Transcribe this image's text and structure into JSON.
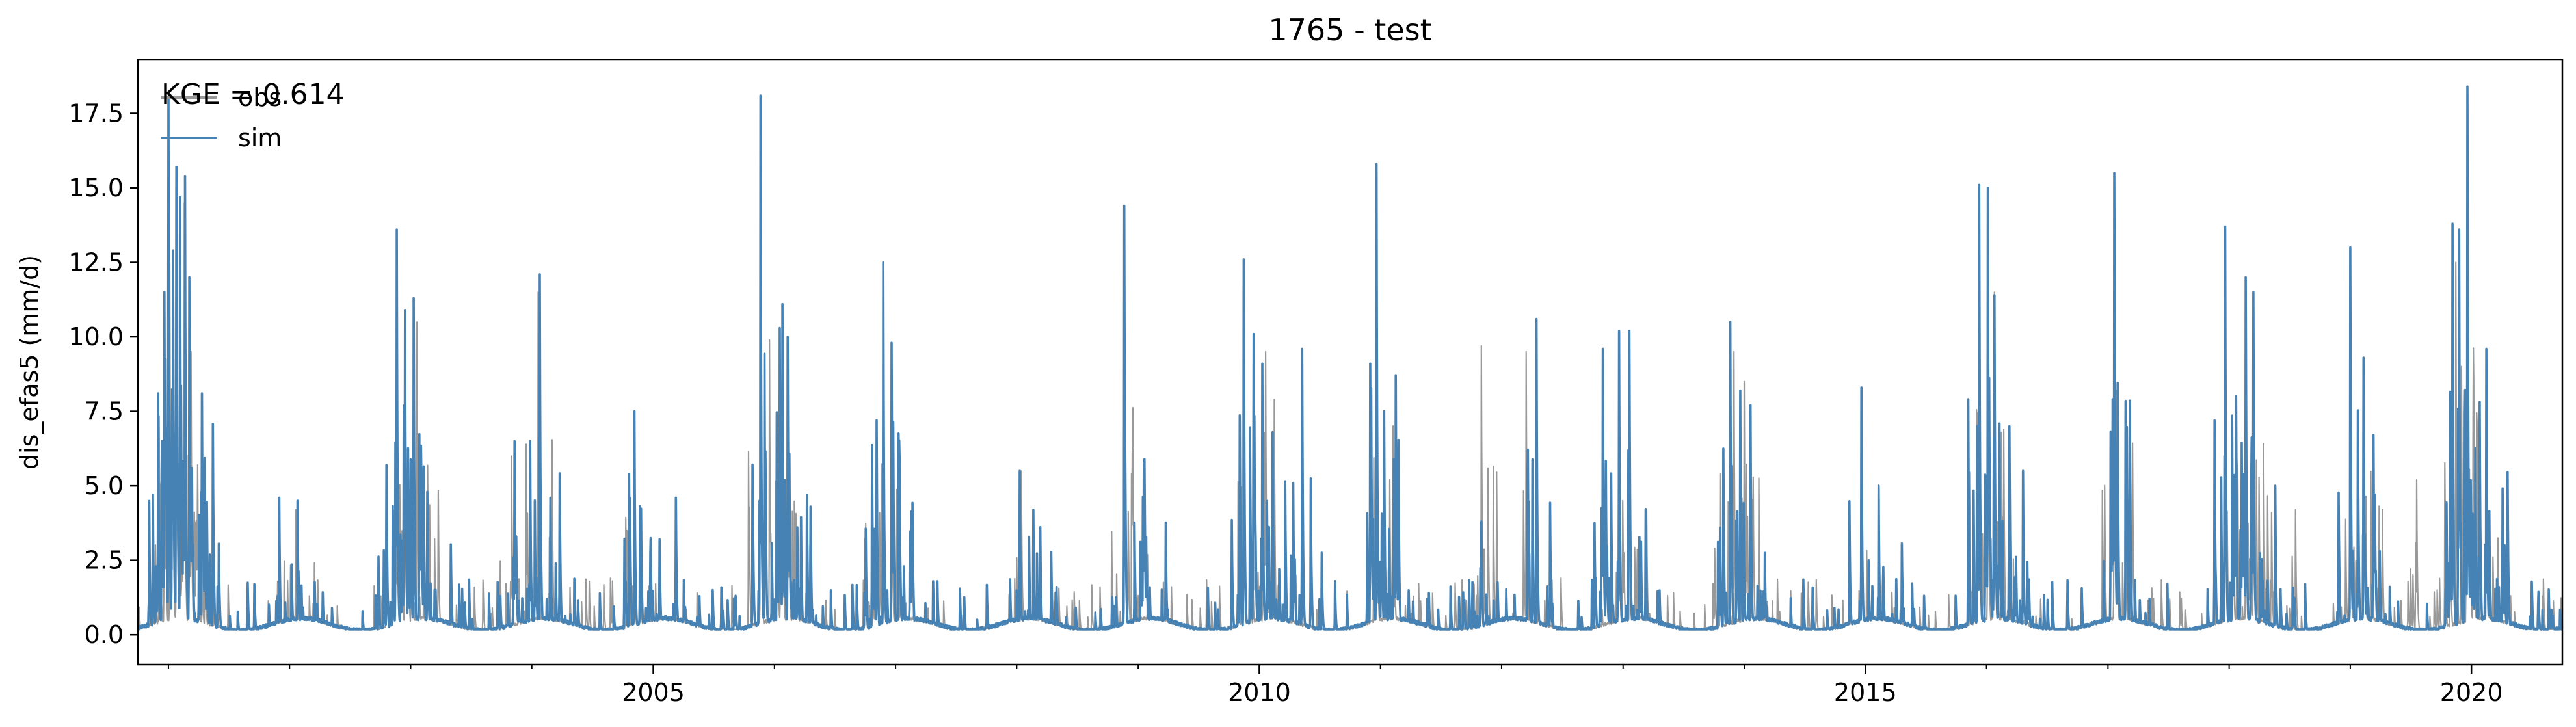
{
  "chart_data": {
    "type": "line",
    "title": "1765 - test",
    "xlabel": "",
    "ylabel": "dis_efas5 (mm/d)",
    "xlim": [
      "2000-10-01",
      "2020-10-01"
    ],
    "ylim": [
      -1.0,
      19.3
    ],
    "x_ticks": [
      "2005",
      "2010",
      "2015",
      "2020"
    ],
    "y_ticks": [
      "0.0",
      "2.5",
      "5.0",
      "7.5",
      "10.0",
      "12.5",
      "15.0",
      "17.5"
    ],
    "grid": false,
    "legend": {
      "position": "top-left",
      "entries": [
        "obs",
        "sim"
      ]
    },
    "annotation": "KGE = 0.614",
    "colors": {
      "obs": "#999999",
      "sim": "#4682b4"
    },
    "baseline": 0.3,
    "series": [
      {
        "name": "obs",
        "peaks": [
          [
            "2000-12-20",
            4.8
          ],
          [
            "2001-01-05",
            12.5
          ],
          [
            "2001-01-25",
            15.0
          ],
          [
            "2001-02-18",
            14.5
          ],
          [
            "2001-03-10",
            9.5
          ],
          [
            "2001-11-30",
            4.5
          ],
          [
            "2002-01-20",
            4.2
          ],
          [
            "2002-11-20",
            12.5
          ],
          [
            "2002-12-15",
            10.0
          ],
          [
            "2003-01-20",
            10.5
          ],
          [
            "2003-11-01",
            6.0
          ],
          [
            "2004-01-20",
            11.5
          ],
          [
            "2004-11-05",
            7.0
          ],
          [
            "2005-11-20",
            17.0
          ],
          [
            "2006-01-25",
            10.0
          ],
          [
            "2006-02-10",
            9.0
          ],
          [
            "2006-11-05",
            7.0
          ],
          [
            "2006-11-25",
            11.5
          ],
          [
            "2006-12-20",
            9.0
          ],
          [
            "2008-01-15",
            5.5
          ],
          [
            "2008-11-20",
            13.5
          ],
          [
            "2009-11-15",
            11.5
          ],
          [
            "2010-01-20",
            9.5
          ],
          [
            "2010-02-15",
            7.9
          ],
          [
            "2010-12-20",
            14.5
          ],
          [
            "2011-11-01",
            9.7
          ],
          [
            "2012-03-15",
            9.5
          ],
          [
            "2012-12-20",
            9.5
          ],
          [
            "2013-01-20",
            9.0
          ],
          [
            "2013-10-20",
            5.4
          ],
          [
            "2013-12-01",
            9.5
          ],
          [
            "2014-01-01",
            8.5
          ],
          [
            "2014-12-20",
            7.8
          ],
          [
            "2015-12-10",
            14.0
          ],
          [
            "2016-01-05",
            14.5
          ],
          [
            "2016-01-25",
            11.5
          ],
          [
            "2017-01-20",
            14.5
          ],
          [
            "2017-12-20",
            13.0
          ],
          [
            "2018-02-20",
            11.0
          ],
          [
            "2018-03-15",
            10.0
          ],
          [
            "2018-07-20",
            4.2
          ],
          [
            "2019-01-01",
            11.0
          ],
          [
            "2019-02-10",
            7.5
          ],
          [
            "2019-07-20",
            5.2
          ],
          [
            "2019-11-15",
            12.5
          ],
          [
            "2019-12-20",
            17.0
          ],
          [
            "2020-02-15",
            8.5
          ]
        ]
      },
      {
        "name": "sim",
        "peaks": [
          [
            "2000-11-15",
            4.7
          ],
          [
            "2000-12-01",
            8.1
          ],
          [
            "2000-12-20",
            11.5
          ],
          [
            "2001-01-01",
            18.0
          ],
          [
            "2001-01-15",
            12.9
          ],
          [
            "2001-01-25",
            15.7
          ],
          [
            "2001-02-05",
            14.7
          ],
          [
            "2001-02-20",
            15.4
          ],
          [
            "2001-03-05",
            12.0
          ],
          [
            "2001-04-10",
            4.8
          ],
          [
            "2001-12-01",
            4.6
          ],
          [
            "2002-01-25",
            4.5
          ],
          [
            "2002-10-20",
            5.7
          ],
          [
            "2002-11-20",
            13.6
          ],
          [
            "2002-12-15",
            10.9
          ],
          [
            "2003-01-10",
            11.3
          ],
          [
            "2003-02-20",
            4.8
          ],
          [
            "2003-11-10",
            6.5
          ],
          [
            "2004-01-10",
            3.6
          ],
          [
            "2004-01-25",
            12.1
          ],
          [
            "2004-10-20",
            5.4
          ],
          [
            "2004-11-05",
            7.5
          ],
          [
            "2005-01-20",
            3.2
          ],
          [
            "2005-03-10",
            4.6
          ],
          [
            "2005-11-20",
            18.1
          ],
          [
            "2006-01-25",
            11.1
          ],
          [
            "2006-02-10",
            10.0
          ],
          [
            "2006-11-05",
            7.2
          ],
          [
            "2006-11-25",
            12.5
          ],
          [
            "2006-12-20",
            9.8
          ],
          [
            "2008-01-10",
            5.5
          ],
          [
            "2008-02-20",
            4.2
          ],
          [
            "2008-11-20",
            14.4
          ],
          [
            "2009-01-20",
            5.9
          ],
          [
            "2009-11-15",
            12.6
          ],
          [
            "2009-12-15",
            10.1
          ],
          [
            "2010-01-10",
            9.1
          ],
          [
            "2010-02-10",
            6.8
          ],
          [
            "2010-05-10",
            9.6
          ],
          [
            "2010-12-01",
            9.1
          ],
          [
            "2010-12-20",
            15.8
          ],
          [
            "2011-02-10",
            5.9
          ],
          [
            "2011-11-01",
            3.8
          ],
          [
            "2012-04-15",
            10.6
          ],
          [
            "2012-11-01",
            9.6
          ],
          [
            "2012-12-20",
            10.2
          ],
          [
            "2013-01-20",
            10.2
          ],
          [
            "2013-11-20",
            10.5
          ],
          [
            "2013-12-20",
            8.2
          ],
          [
            "2014-01-20",
            7.7
          ],
          [
            "2014-12-20",
            8.3
          ],
          [
            "2015-02-10",
            5.0
          ],
          [
            "2015-12-10",
            15.1
          ],
          [
            "2016-01-05",
            15.0
          ],
          [
            "2016-01-25",
            11.4
          ],
          [
            "2016-03-10",
            7.0
          ],
          [
            "2016-04-20",
            5.5
          ],
          [
            "2017-01-20",
            15.5
          ],
          [
            "2017-12-20",
            13.7
          ],
          [
            "2018-02-20",
            12.0
          ],
          [
            "2018-03-15",
            11.5
          ],
          [
            "2018-05-20",
            5.0
          ],
          [
            "2019-01-01",
            13.0
          ],
          [
            "2019-02-10",
            9.3
          ],
          [
            "2019-11-05",
            13.8
          ],
          [
            "2019-11-25",
            13.6
          ],
          [
            "2019-12-20",
            18.4
          ],
          [
            "2020-02-15",
            9.6
          ],
          [
            "2020-04-10",
            3.0
          ],
          [
            "2020-07-20",
            1.0
          ]
        ]
      }
    ]
  }
}
